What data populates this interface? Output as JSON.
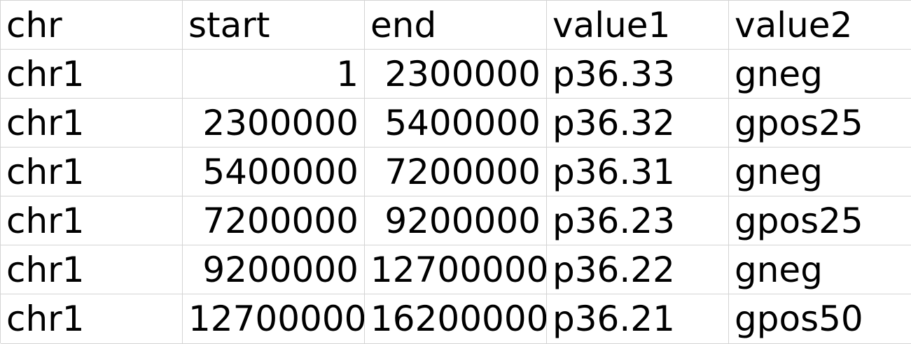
{
  "sheet": {
    "headers": [
      "chr",
      "start",
      "end",
      "value1",
      "value2"
    ],
    "rows": [
      [
        "chr1",
        "1",
        "2300000",
        "p36.33",
        "gneg"
      ],
      [
        "chr1",
        "2300000",
        "5400000",
        "p36.32",
        "gpos25"
      ],
      [
        "chr1",
        "5400000",
        "7200000",
        "p36.31",
        "gneg"
      ],
      [
        "chr1",
        "7200000",
        "9200000",
        "p36.23",
        "gpos25"
      ],
      [
        "chr1",
        "9200000",
        "12700000",
        "p36.22",
        "gneg"
      ],
      [
        "chr1",
        "12700000",
        "16200000",
        "p36.21",
        "gpos50"
      ]
    ]
  },
  "colors": {
    "gridline": "#d4d4d4",
    "text": "#000000",
    "background": "#ffffff"
  }
}
